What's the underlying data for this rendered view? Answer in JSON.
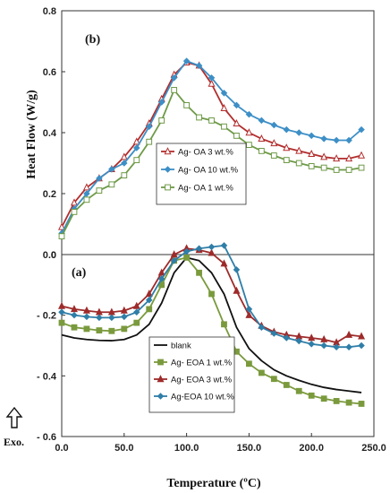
{
  "chart_data": [
    {
      "type": "line",
      "panel_label": "(b)",
      "ylabel": "Heat Flow (W/g)",
      "xlim": [
        0,
        250
      ],
      "ylim": [
        0,
        0.8
      ],
      "y_ticks": [
        "0",
        "0.2",
        "0.4",
        "0.6",
        "0.8"
      ],
      "legend_position": "center-left",
      "series": [
        {
          "name": "Ag- OA 3 wt.%",
          "color": "#b22d2d",
          "marker": "triangle-open",
          "x": [
            0,
            10,
            20,
            30,
            40,
            50,
            60,
            70,
            80,
            90,
            100,
            110,
            120,
            130,
            140,
            150,
            160,
            170,
            180,
            190,
            200,
            210,
            220,
            230,
            240
          ],
          "y": [
            0.09,
            0.17,
            0.22,
            0.25,
            0.28,
            0.32,
            0.37,
            0.43,
            0.51,
            0.59,
            0.63,
            0.62,
            0.56,
            0.48,
            0.43,
            0.4,
            0.38,
            0.365,
            0.35,
            0.34,
            0.33,
            0.32,
            0.315,
            0.315,
            0.325
          ]
        },
        {
          "name": "Ag- OA 10 wt.%",
          "color": "#3d8fc6",
          "marker": "diamond",
          "x": [
            0,
            10,
            20,
            30,
            40,
            50,
            60,
            70,
            80,
            90,
            100,
            110,
            120,
            130,
            140,
            150,
            160,
            170,
            180,
            190,
            200,
            210,
            220,
            230,
            240
          ],
          "y": [
            0.07,
            0.15,
            0.2,
            0.25,
            0.28,
            0.3,
            0.35,
            0.42,
            0.5,
            0.58,
            0.635,
            0.62,
            0.58,
            0.53,
            0.49,
            0.46,
            0.44,
            0.425,
            0.41,
            0.4,
            0.39,
            0.38,
            0.375,
            0.375,
            0.41
          ]
        },
        {
          "name": "Ag- OA 1 wt.%",
          "color": "#6e9a47",
          "marker": "square-open",
          "x": [
            0,
            10,
            20,
            30,
            40,
            50,
            60,
            70,
            80,
            90,
            100,
            110,
            120,
            130,
            140,
            150,
            160,
            170,
            180,
            190,
            200,
            210,
            220,
            230,
            240
          ],
          "y": [
            0.06,
            0.14,
            0.18,
            0.21,
            0.23,
            0.26,
            0.31,
            0.37,
            0.44,
            0.54,
            0.49,
            0.45,
            0.44,
            0.42,
            0.39,
            0.36,
            0.34,
            0.325,
            0.31,
            0.3,
            0.29,
            0.285,
            0.278,
            0.278,
            0.285
          ]
        }
      ]
    },
    {
      "type": "line",
      "panel_label": "(a)",
      "xlabel": "Temperature (ºC)",
      "xlim": [
        0,
        250
      ],
      "ylim": [
        -0.6,
        0
      ],
      "x_ticks": [
        "0.0",
        "50.0",
        "100.0",
        "150.0",
        "200.0",
        "250.0"
      ],
      "y_ticks": [
        "0.0",
        "- 0.2",
        "- 0.4",
        "- 0.6"
      ],
      "legend_position": "center",
      "series": [
        {
          "name": "blank",
          "color": "#111111",
          "marker": "none",
          "x": [
            0,
            10,
            20,
            30,
            40,
            50,
            60,
            70,
            80,
            90,
            100,
            110,
            120,
            130,
            140,
            150,
            160,
            170,
            180,
            190,
            200,
            210,
            220,
            230,
            240
          ],
          "y": [
            -0.265,
            -0.275,
            -0.28,
            -0.283,
            -0.284,
            -0.28,
            -0.265,
            -0.23,
            -0.16,
            -0.06,
            -0.01,
            -0.02,
            -0.06,
            -0.13,
            -0.24,
            -0.31,
            -0.35,
            -0.38,
            -0.4,
            -0.415,
            -0.428,
            -0.438,
            -0.445,
            -0.45,
            -0.455
          ]
        },
        {
          "name": "Ag- EOA 1 wt.%",
          "color": "#7a9a3d",
          "marker": "square",
          "x": [
            0,
            10,
            20,
            30,
            40,
            50,
            60,
            70,
            80,
            90,
            100,
            110,
            120,
            130,
            140,
            150,
            160,
            170,
            180,
            190,
            200,
            210,
            220,
            230,
            240
          ],
          "y": [
            -0.225,
            -0.24,
            -0.245,
            -0.25,
            -0.252,
            -0.245,
            -0.225,
            -0.18,
            -0.1,
            -0.02,
            -0.01,
            -0.06,
            -0.13,
            -0.23,
            -0.32,
            -0.36,
            -0.39,
            -0.41,
            -0.43,
            -0.45,
            -0.465,
            -0.475,
            -0.483,
            -0.488,
            -0.492
          ]
        },
        {
          "name": "Ag- EOA 3 wt.%",
          "color": "#9e2b2b",
          "marker": "triangle",
          "x": [
            0,
            10,
            20,
            30,
            40,
            50,
            60,
            70,
            80,
            90,
            100,
            110,
            120,
            130,
            140,
            150,
            160,
            170,
            180,
            190,
            200,
            210,
            220,
            230,
            240
          ],
          "y": [
            -0.17,
            -0.18,
            -0.185,
            -0.19,
            -0.19,
            -0.185,
            -0.17,
            -0.13,
            -0.06,
            0.0,
            0.02,
            0.015,
            0.005,
            -0.03,
            -0.12,
            -0.2,
            -0.235,
            -0.255,
            -0.265,
            -0.27,
            -0.275,
            -0.28,
            -0.29,
            -0.265,
            -0.27
          ]
        },
        {
          "name": "Ag-EOA  10 wt.%",
          "color": "#2f7ea8",
          "marker": "diamond",
          "x": [
            0,
            10,
            20,
            30,
            40,
            50,
            60,
            70,
            80,
            90,
            100,
            110,
            120,
            130,
            140,
            150,
            160,
            170,
            180,
            190,
            200,
            210,
            220,
            230,
            240
          ],
          "y": [
            -0.19,
            -0.2,
            -0.205,
            -0.208,
            -0.208,
            -0.205,
            -0.19,
            -0.15,
            -0.08,
            -0.02,
            0.01,
            0.02,
            0.025,
            0.03,
            -0.05,
            -0.18,
            -0.24,
            -0.26,
            -0.275,
            -0.285,
            -0.295,
            -0.3,
            -0.305,
            -0.305,
            -0.3
          ]
        }
      ]
    }
  ],
  "annotation": {
    "exo_label": "Exo."
  }
}
